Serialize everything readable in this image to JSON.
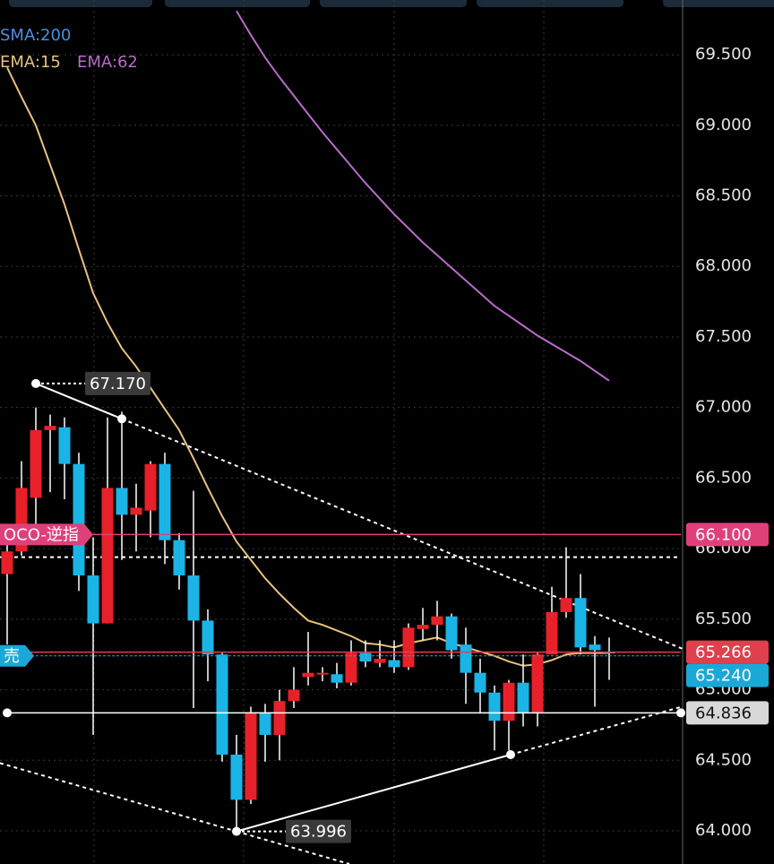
{
  "chart_data": {
    "type": "candlestick",
    "indicators": [
      {
        "name": "SMA:200",
        "color": "#4a8fe0"
      },
      {
        "name": "EMA:15",
        "color": "#e9c27c",
        "values": [
          69.41,
          69.2,
          69.0,
          68.72,
          68.44,
          68.12,
          67.81,
          67.6,
          67.42,
          67.29,
          67.14,
          66.99,
          66.84,
          66.64,
          66.43,
          66.23,
          66.05,
          65.92,
          65.79,
          65.68,
          65.58,
          65.49,
          65.46,
          65.42,
          65.38,
          65.33,
          65.32,
          65.3,
          65.33,
          65.35,
          65.37,
          65.33,
          65.3,
          65.27,
          65.24,
          65.2,
          65.17,
          65.18,
          65.21,
          65.25,
          65.26,
          65.26,
          65.26
        ]
      },
      {
        "name": "EMA:62",
        "color": "#b86bc9",
        "values": [
          null,
          null,
          null,
          null,
          null,
          null,
          null,
          null,
          null,
          null,
          null,
          null,
          null,
          null,
          null,
          null,
          69.81,
          69.64,
          69.48,
          69.34,
          69.21,
          69.08,
          68.95,
          68.83,
          68.71,
          68.59,
          68.48,
          68.37,
          68.27,
          68.17,
          68.08,
          67.99,
          67.9,
          67.81,
          67.72,
          67.65,
          67.58,
          67.51,
          67.45,
          67.39,
          67.33,
          67.26,
          67.19
        ]
      }
    ],
    "up_color": "#e8202a",
    "down_color": "#1ab4e6",
    "open": [
      65.82,
      65.98,
      66.36,
      66.84,
      66.86,
      66.6,
      65.81,
      65.47,
      66.43,
      66.24,
      66.27,
      66.6,
      66.06,
      65.81,
      65.49,
      65.25,
      64.54,
      64.22,
      64.84,
      64.68,
      64.92,
      65.09,
      65.11,
      65.11,
      65.05,
      65.26,
      65.19,
      65.21,
      65.16,
      65.43,
      65.46,
      65.52,
      65.32,
      65.12,
      64.98,
      64.78,
      65.05,
      64.84,
      65.25,
      65.55,
      65.65,
      65.32,
      65.27
    ],
    "high": [
      66.14,
      66.62,
      67.0,
      66.95,
      66.93,
      66.68,
      66.08,
      66.93,
      66.97,
      66.46,
      66.62,
      66.68,
      66.11,
      66.41,
      65.57,
      65.26,
      64.68,
      64.88,
      64.9,
      65.0,
      65.16,
      65.41,
      65.16,
      65.19,
      65.35,
      65.35,
      65.35,
      65.35,
      65.47,
      65.58,
      65.63,
      65.54,
      65.44,
      65.22,
      65.03,
      65.07,
      65.25,
      65.26,
      65.73,
      66.01,
      65.82,
      65.38,
      65.37
    ],
    "low": [
      65.32,
      65.95,
      66.14,
      66.4,
      66.35,
      65.7,
      64.68,
      65.47,
      65.92,
      65.98,
      66.08,
      65.89,
      65.71,
      64.87,
      65.06,
      64.49,
      63.996,
      64.19,
      64.49,
      64.5,
      64.87,
      65.03,
      65.06,
      65.01,
      65.03,
      65.16,
      65.16,
      65.12,
      65.14,
      65.35,
      65.35,
      65.22,
      64.9,
      64.84,
      64.57,
      64.57,
      64.74,
      64.74,
      65.25,
      65.51,
      65.25,
      64.88,
      65.07
    ],
    "close": [
      65.98,
      66.43,
      66.84,
      66.87,
      66.6,
      65.81,
      65.47,
      66.43,
      66.24,
      66.29,
      66.6,
      66.06,
      65.81,
      65.49,
      65.25,
      64.54,
      64.22,
      64.84,
      64.68,
      64.92,
      65.0,
      65.12,
      65.12,
      65.05,
      65.26,
      65.2,
      65.22,
      65.16,
      65.44,
      65.46,
      65.52,
      65.28,
      65.12,
      64.98,
      64.78,
      65.05,
      64.84,
      65.25,
      65.55,
      65.65,
      65.3,
      65.28,
      65.26
    ],
    "ylim": [
      63.765,
      69.888
    ],
    "yticks": [
      {
        "value": 69.5,
        "label": "69.500"
      },
      {
        "value": 69.0,
        "label": "69.000"
      },
      {
        "value": 68.5,
        "label": "68.500"
      },
      {
        "value": 68.0,
        "label": "68.000"
      },
      {
        "value": 67.5,
        "label": "67.500"
      },
      {
        "value": 67.0,
        "label": "67.000"
      },
      {
        "value": 66.5,
        "label": "66.500"
      },
      {
        "value": 66.0,
        "label": "66.000"
      },
      {
        "value": 65.5,
        "label": "65.500"
      },
      {
        "value": 65.0,
        "label": "65.000"
      },
      {
        "value": 64.5,
        "label": "64.500"
      },
      {
        "value": 64.0,
        "label": "64.000"
      }
    ],
    "grid": true,
    "price_lines": [
      {
        "label": "OCO-逆指",
        "value": 66.1,
        "value_label": "66.100",
        "color": "#e0407a",
        "style": "solid"
      },
      {
        "value": 65.266,
        "value_label": "65.266",
        "color": "#e0404c",
        "style": "solid"
      },
      {
        "label": "売",
        "value": 65.24,
        "value_label": "65.240",
        "color": "#1aa8d8",
        "style": "dashed"
      },
      {
        "value": 64.836,
        "value_label": "64.836",
        "color": "#ffffff",
        "style": "solid",
        "start": 0
      }
    ],
    "trendlines": [
      {
        "points": [
          [
            2,
            67.17
          ],
          [
            8,
            66.92
          ]
        ],
        "extend": true,
        "style": "solid"
      },
      {
        "points": [
          [
            16,
            63.996
          ],
          [
            35.125,
            64.54
          ]
        ],
        "extend": true,
        "style": "solid"
      },
      {
        "points": [
          [
            -0.5,
            64.48
          ],
          [
            16,
            63.996
          ]
        ],
        "extend": true,
        "style": "dashed"
      },
      {
        "points": [
          [
            -0.5,
            65.94
          ],
          [
            47,
            65.94
          ]
        ],
        "extend": false,
        "style": "dashed"
      }
    ],
    "annotations": [
      {
        "label": "67.170",
        "index": 2,
        "value": 67.17
      },
      {
        "label": "63.996",
        "index": 16,
        "value": 63.996
      }
    ]
  }
}
